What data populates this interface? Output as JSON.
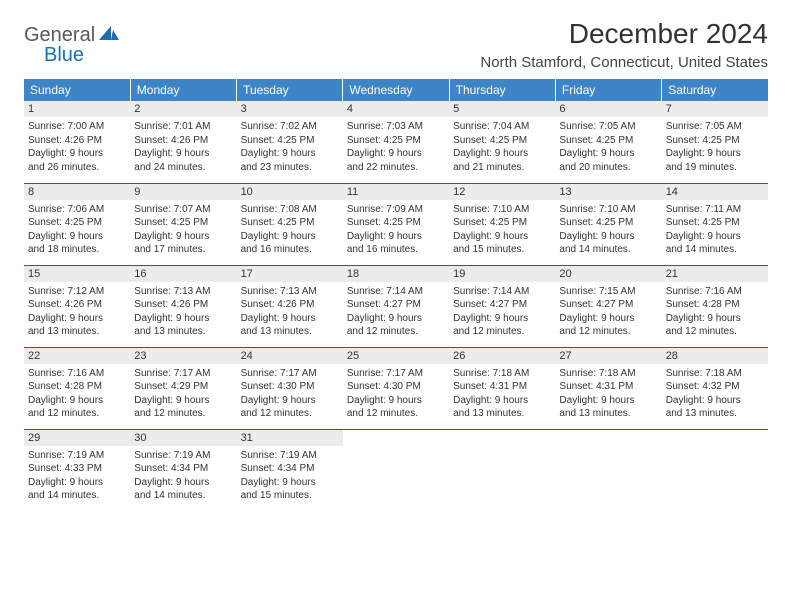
{
  "logo": {
    "text1": "General",
    "text2": "Blue"
  },
  "title": "December 2024",
  "location": "North Stamford, Connecticut, United States",
  "colors": {
    "header_bg": "#3d85c6",
    "header_text": "#ffffff",
    "daynum_bg": "#ececec",
    "cell_border": "#2a5a8a",
    "text": "#333333",
    "logo_gray": "#585858",
    "logo_blue": "#1a6fb5"
  },
  "weekdays": [
    "Sunday",
    "Monday",
    "Tuesday",
    "Wednesday",
    "Thursday",
    "Friday",
    "Saturday"
  ],
  "weeks": [
    [
      {
        "n": 1,
        "sr": "7:00 AM",
        "ss": "4:26 PM",
        "dl": "9 hours and 26 minutes."
      },
      {
        "n": 2,
        "sr": "7:01 AM",
        "ss": "4:26 PM",
        "dl": "9 hours and 24 minutes."
      },
      {
        "n": 3,
        "sr": "7:02 AM",
        "ss": "4:25 PM",
        "dl": "9 hours and 23 minutes."
      },
      {
        "n": 4,
        "sr": "7:03 AM",
        "ss": "4:25 PM",
        "dl": "9 hours and 22 minutes."
      },
      {
        "n": 5,
        "sr": "7:04 AM",
        "ss": "4:25 PM",
        "dl": "9 hours and 21 minutes."
      },
      {
        "n": 6,
        "sr": "7:05 AM",
        "ss": "4:25 PM",
        "dl": "9 hours and 20 minutes."
      },
      {
        "n": 7,
        "sr": "7:05 AM",
        "ss": "4:25 PM",
        "dl": "9 hours and 19 minutes."
      }
    ],
    [
      {
        "n": 8,
        "sr": "7:06 AM",
        "ss": "4:25 PM",
        "dl": "9 hours and 18 minutes."
      },
      {
        "n": 9,
        "sr": "7:07 AM",
        "ss": "4:25 PM",
        "dl": "9 hours and 17 minutes."
      },
      {
        "n": 10,
        "sr": "7:08 AM",
        "ss": "4:25 PM",
        "dl": "9 hours and 16 minutes."
      },
      {
        "n": 11,
        "sr": "7:09 AM",
        "ss": "4:25 PM",
        "dl": "9 hours and 16 minutes."
      },
      {
        "n": 12,
        "sr": "7:10 AM",
        "ss": "4:25 PM",
        "dl": "9 hours and 15 minutes."
      },
      {
        "n": 13,
        "sr": "7:10 AM",
        "ss": "4:25 PM",
        "dl": "9 hours and 14 minutes."
      },
      {
        "n": 14,
        "sr": "7:11 AM",
        "ss": "4:25 PM",
        "dl": "9 hours and 14 minutes."
      }
    ],
    [
      {
        "n": 15,
        "sr": "7:12 AM",
        "ss": "4:26 PM",
        "dl": "9 hours and 13 minutes."
      },
      {
        "n": 16,
        "sr": "7:13 AM",
        "ss": "4:26 PM",
        "dl": "9 hours and 13 minutes."
      },
      {
        "n": 17,
        "sr": "7:13 AM",
        "ss": "4:26 PM",
        "dl": "9 hours and 13 minutes."
      },
      {
        "n": 18,
        "sr": "7:14 AM",
        "ss": "4:27 PM",
        "dl": "9 hours and 12 minutes."
      },
      {
        "n": 19,
        "sr": "7:14 AM",
        "ss": "4:27 PM",
        "dl": "9 hours and 12 minutes."
      },
      {
        "n": 20,
        "sr": "7:15 AM",
        "ss": "4:27 PM",
        "dl": "9 hours and 12 minutes."
      },
      {
        "n": 21,
        "sr": "7:16 AM",
        "ss": "4:28 PM",
        "dl": "9 hours and 12 minutes."
      }
    ],
    [
      {
        "n": 22,
        "sr": "7:16 AM",
        "ss": "4:28 PM",
        "dl": "9 hours and 12 minutes."
      },
      {
        "n": 23,
        "sr": "7:17 AM",
        "ss": "4:29 PM",
        "dl": "9 hours and 12 minutes."
      },
      {
        "n": 24,
        "sr": "7:17 AM",
        "ss": "4:30 PM",
        "dl": "9 hours and 12 minutes."
      },
      {
        "n": 25,
        "sr": "7:17 AM",
        "ss": "4:30 PM",
        "dl": "9 hours and 12 minutes."
      },
      {
        "n": 26,
        "sr": "7:18 AM",
        "ss": "4:31 PM",
        "dl": "9 hours and 13 minutes."
      },
      {
        "n": 27,
        "sr": "7:18 AM",
        "ss": "4:31 PM",
        "dl": "9 hours and 13 minutes."
      },
      {
        "n": 28,
        "sr": "7:18 AM",
        "ss": "4:32 PM",
        "dl": "9 hours and 13 minutes."
      }
    ],
    [
      {
        "n": 29,
        "sr": "7:19 AM",
        "ss": "4:33 PM",
        "dl": "9 hours and 14 minutes."
      },
      {
        "n": 30,
        "sr": "7:19 AM",
        "ss": "4:34 PM",
        "dl": "9 hours and 14 minutes."
      },
      {
        "n": 31,
        "sr": "7:19 AM",
        "ss": "4:34 PM",
        "dl": "9 hours and 15 minutes."
      },
      null,
      null,
      null,
      null
    ]
  ],
  "labels": {
    "sunrise": "Sunrise:",
    "sunset": "Sunset:",
    "daylight": "Daylight:"
  }
}
